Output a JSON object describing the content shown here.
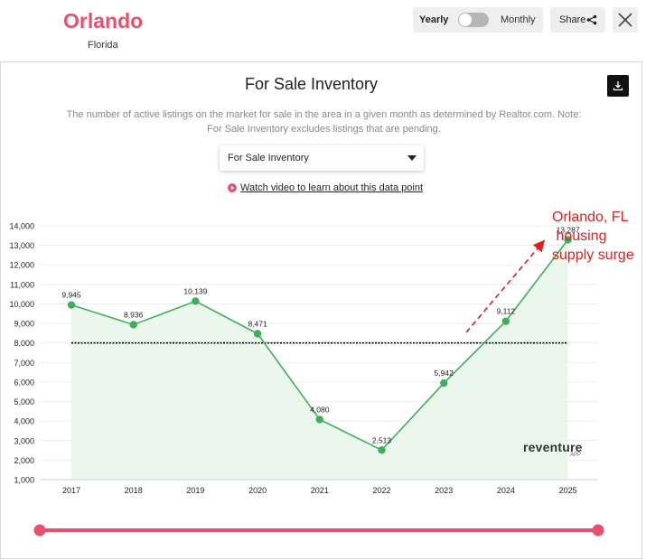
{
  "header": {
    "city": "Orlando",
    "state": "Florida",
    "toggle_yearly": "Yearly",
    "toggle_monthly": "Monthly",
    "share_label": "Share"
  },
  "card": {
    "title": "For Sale Inventory",
    "description": "The number of active listings on the market for sale in the area in a given month as determined by Realtor.com. Note: For Sale Inventory excludes listings that are pending.",
    "select_value": "For Sale Inventory",
    "video_link": "Watch video to learn about this data point"
  },
  "brand": {
    "name": "reventure",
    "sub": "APP"
  },
  "annotation": {
    "lines": [
      "Orlando, FL",
      " housing",
      "supply surge"
    ]
  },
  "colors": {
    "accent": "#e8506c",
    "line": "#3fae5a",
    "area": "#e8f6ea",
    "annotation": "#e02020"
  },
  "chart_data": {
    "type": "line",
    "title": "For Sale Inventory",
    "categories": [
      "2017",
      "2018",
      "2019",
      "2020",
      "2021",
      "2022",
      "2023",
      "2024",
      "2025"
    ],
    "values": [
      9945,
      8936,
      10139,
      8471,
      4080,
      2513,
      5942,
      9112,
      13287
    ],
    "labels": [
      "9,945",
      "8,936",
      "10,139",
      "8,471",
      "4,080",
      "2,513",
      "5,942",
      "9,112",
      "13,287"
    ],
    "yticks": [
      "1,000",
      "2,000",
      "3,000",
      "4,000",
      "5,000",
      "6,000",
      "7,000",
      "8,000",
      "9,000",
      "10,000",
      "11,000",
      "12,000",
      "13,000",
      "14,000"
    ],
    "ylim": [
      1000,
      14000
    ],
    "reference_line": 8000,
    "grid": true,
    "legend": "none"
  }
}
